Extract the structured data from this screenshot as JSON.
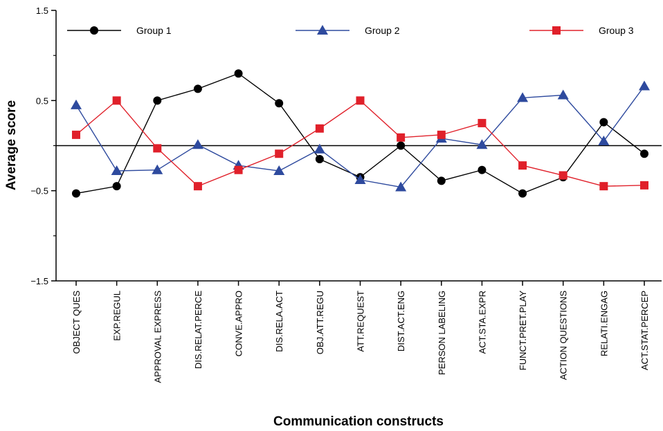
{
  "chart_data": {
    "type": "line",
    "xlabel": "Communication constructs",
    "ylabel": "Average score",
    "ylim": [
      -1.5,
      1.5
    ],
    "yticks": [
      -1.5,
      -0.5,
      0.5,
      1.5
    ],
    "ytick_labels": [
      "−1.5",
      "−0.5",
      "0.5",
      "1.5"
    ],
    "zero_line": 0,
    "grid": false,
    "legend_position": "top",
    "categories": [
      "OBJECT QUES",
      "EXP.REGUL",
      "APPROVAL EXPRESS",
      "DIS.RELAT.PERCE",
      "CONVE.APPRO",
      "DIS.RELA.ACT",
      "OBJ.ATT.REGU",
      "ATT.REQUEST",
      "DIST.ACT.ENG",
      "PERSON LABELING",
      "ACT.STA.EXPR",
      "FUNCT.PRET.PLAY",
      "ACTION QUESTIONS",
      "RELATI.ENGAG",
      "ACT.STAT.PERCEP"
    ],
    "series": [
      {
        "name": "Group 1",
        "color": "#000000",
        "marker": "circle",
        "values": [
          -0.53,
          -0.45,
          0.5,
          0.63,
          0.8,
          0.47,
          -0.15,
          -0.35,
          0.0,
          -0.39,
          -0.27,
          -0.53,
          -0.35,
          0.26,
          -0.09
        ]
      },
      {
        "name": "Group 2",
        "color": "#2e4a9e",
        "marker": "triangle",
        "values": [
          0.45,
          -0.28,
          -0.27,
          0.01,
          -0.22,
          -0.28,
          -0.04,
          -0.38,
          -0.46,
          0.08,
          0.01,
          0.53,
          0.56,
          0.05,
          0.66
        ]
      },
      {
        "name": "Group 3",
        "color": "#e0202a",
        "marker": "square",
        "values": [
          0.12,
          0.5,
          -0.03,
          -0.45,
          -0.27,
          -0.09,
          0.19,
          0.5,
          0.09,
          0.12,
          0.25,
          -0.22,
          -0.33,
          -0.45,
          -0.44
        ]
      }
    ]
  }
}
